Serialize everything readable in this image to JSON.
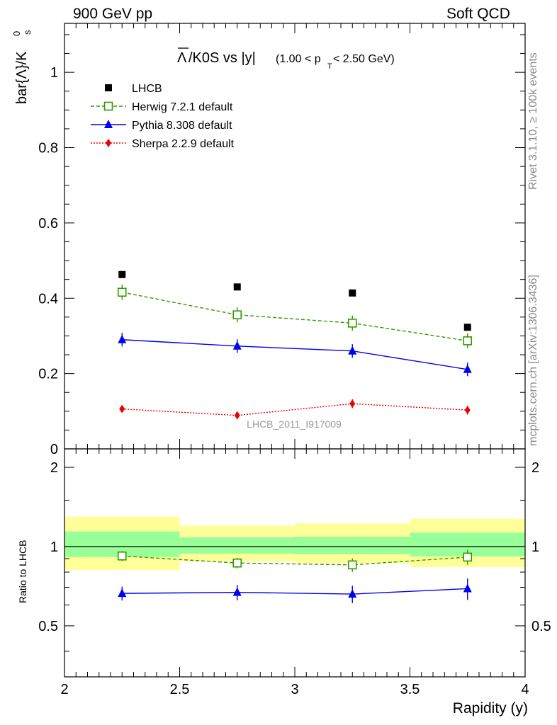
{
  "header": {
    "left": "900 GeV pp",
    "right": "Soft QCD"
  },
  "side_labels": {
    "rivet": "Rivet 3.1.10, ≥ 100k events",
    "mcplots": "mcplots.cern.ch [arXiv:1306.3436]"
  },
  "chart_data": {
    "type": "scatter",
    "title": {
      "bar_part": "Λ",
      "main": "/K0S vs |y|",
      "range_open": "(1.00 < p",
      "range_sub": "T",
      "range_close": " < 2.50 GeV)"
    },
    "watermark": "LHCB_2011_I917009",
    "xlabel": "Rapidity (y)",
    "ylabel": {
      "prefix": "bar{Λ}/K",
      "sup": "0",
      "sub": "s"
    },
    "ratio_ylabel": "Ratio to LHCB",
    "x": [
      2.25,
      2.75,
      3.25,
      3.75
    ],
    "xlim": [
      2,
      4
    ],
    "xticks": [
      "2",
      "2.5",
      "3",
      "3.5",
      "4"
    ],
    "ylim": [
      0,
      1.13
    ],
    "yticks": [
      "0",
      "0.2",
      "0.4",
      "0.6",
      "0.8",
      "1"
    ],
    "ratio_ylim": [
      0.32,
      2.35
    ],
    "ratio_yticks": [
      "0.5",
      "1",
      "2"
    ],
    "bins": [
      [
        2.0,
        2.5
      ],
      [
        2.5,
        3.0
      ],
      [
        3.0,
        3.5
      ],
      [
        3.5,
        4.0
      ]
    ],
    "reference": {
      "name": "LHCB",
      "values": [
        0.463,
        0.43,
        0.414,
        0.323
      ],
      "band_inner": [
        [
          0.912,
          1.142
        ],
        [
          0.94,
          1.085
        ],
        [
          0.935,
          1.09
        ],
        [
          0.918,
          1.13
        ]
      ],
      "band_outer": [
        [
          0.815,
          1.3
        ],
        [
          0.878,
          1.203
        ],
        [
          0.865,
          1.225
        ],
        [
          0.835,
          1.275
        ]
      ]
    },
    "series": [
      {
        "name": "Herwig 7.2.1 default",
        "color": "#339900",
        "marker": "open-square",
        "line": "dashed",
        "values": [
          0.416,
          0.356,
          0.334,
          0.287
        ],
        "errors": [
          0.02,
          0.02,
          0.02,
          0.02
        ],
        "ratio": [
          0.921,
          0.866,
          0.852,
          0.912
        ],
        "ratio_err": [
          0.04,
          0.04,
          0.05,
          0.06
        ]
      },
      {
        "name": "Pythia 8.308 default",
        "color": "#0000ee",
        "marker": "triangle",
        "line": "solid",
        "values": [
          0.29,
          0.273,
          0.26,
          0.211
        ],
        "errors": [
          0.018,
          0.018,
          0.018,
          0.018
        ],
        "ratio": [
          0.664,
          0.67,
          0.66,
          0.692
        ],
        "ratio_err": [
          0.04,
          0.045,
          0.05,
          0.065
        ]
      },
      {
        "name": "Sherpa 2.2.9 default",
        "color": "#ee0000",
        "marker": "diamond",
        "line": "dotted",
        "values": [
          0.106,
          0.089,
          0.12,
          0.103
        ],
        "errors": [
          0.008,
          0.008,
          0.012,
          0.012
        ]
      }
    ],
    "ratio_reference_line": 1,
    "colors": {
      "band_inner": "#99ff99",
      "band_outer": "#ffff99",
      "reference": "#000000",
      "side_text": "#888888",
      "watermark": "#999999"
    }
  }
}
